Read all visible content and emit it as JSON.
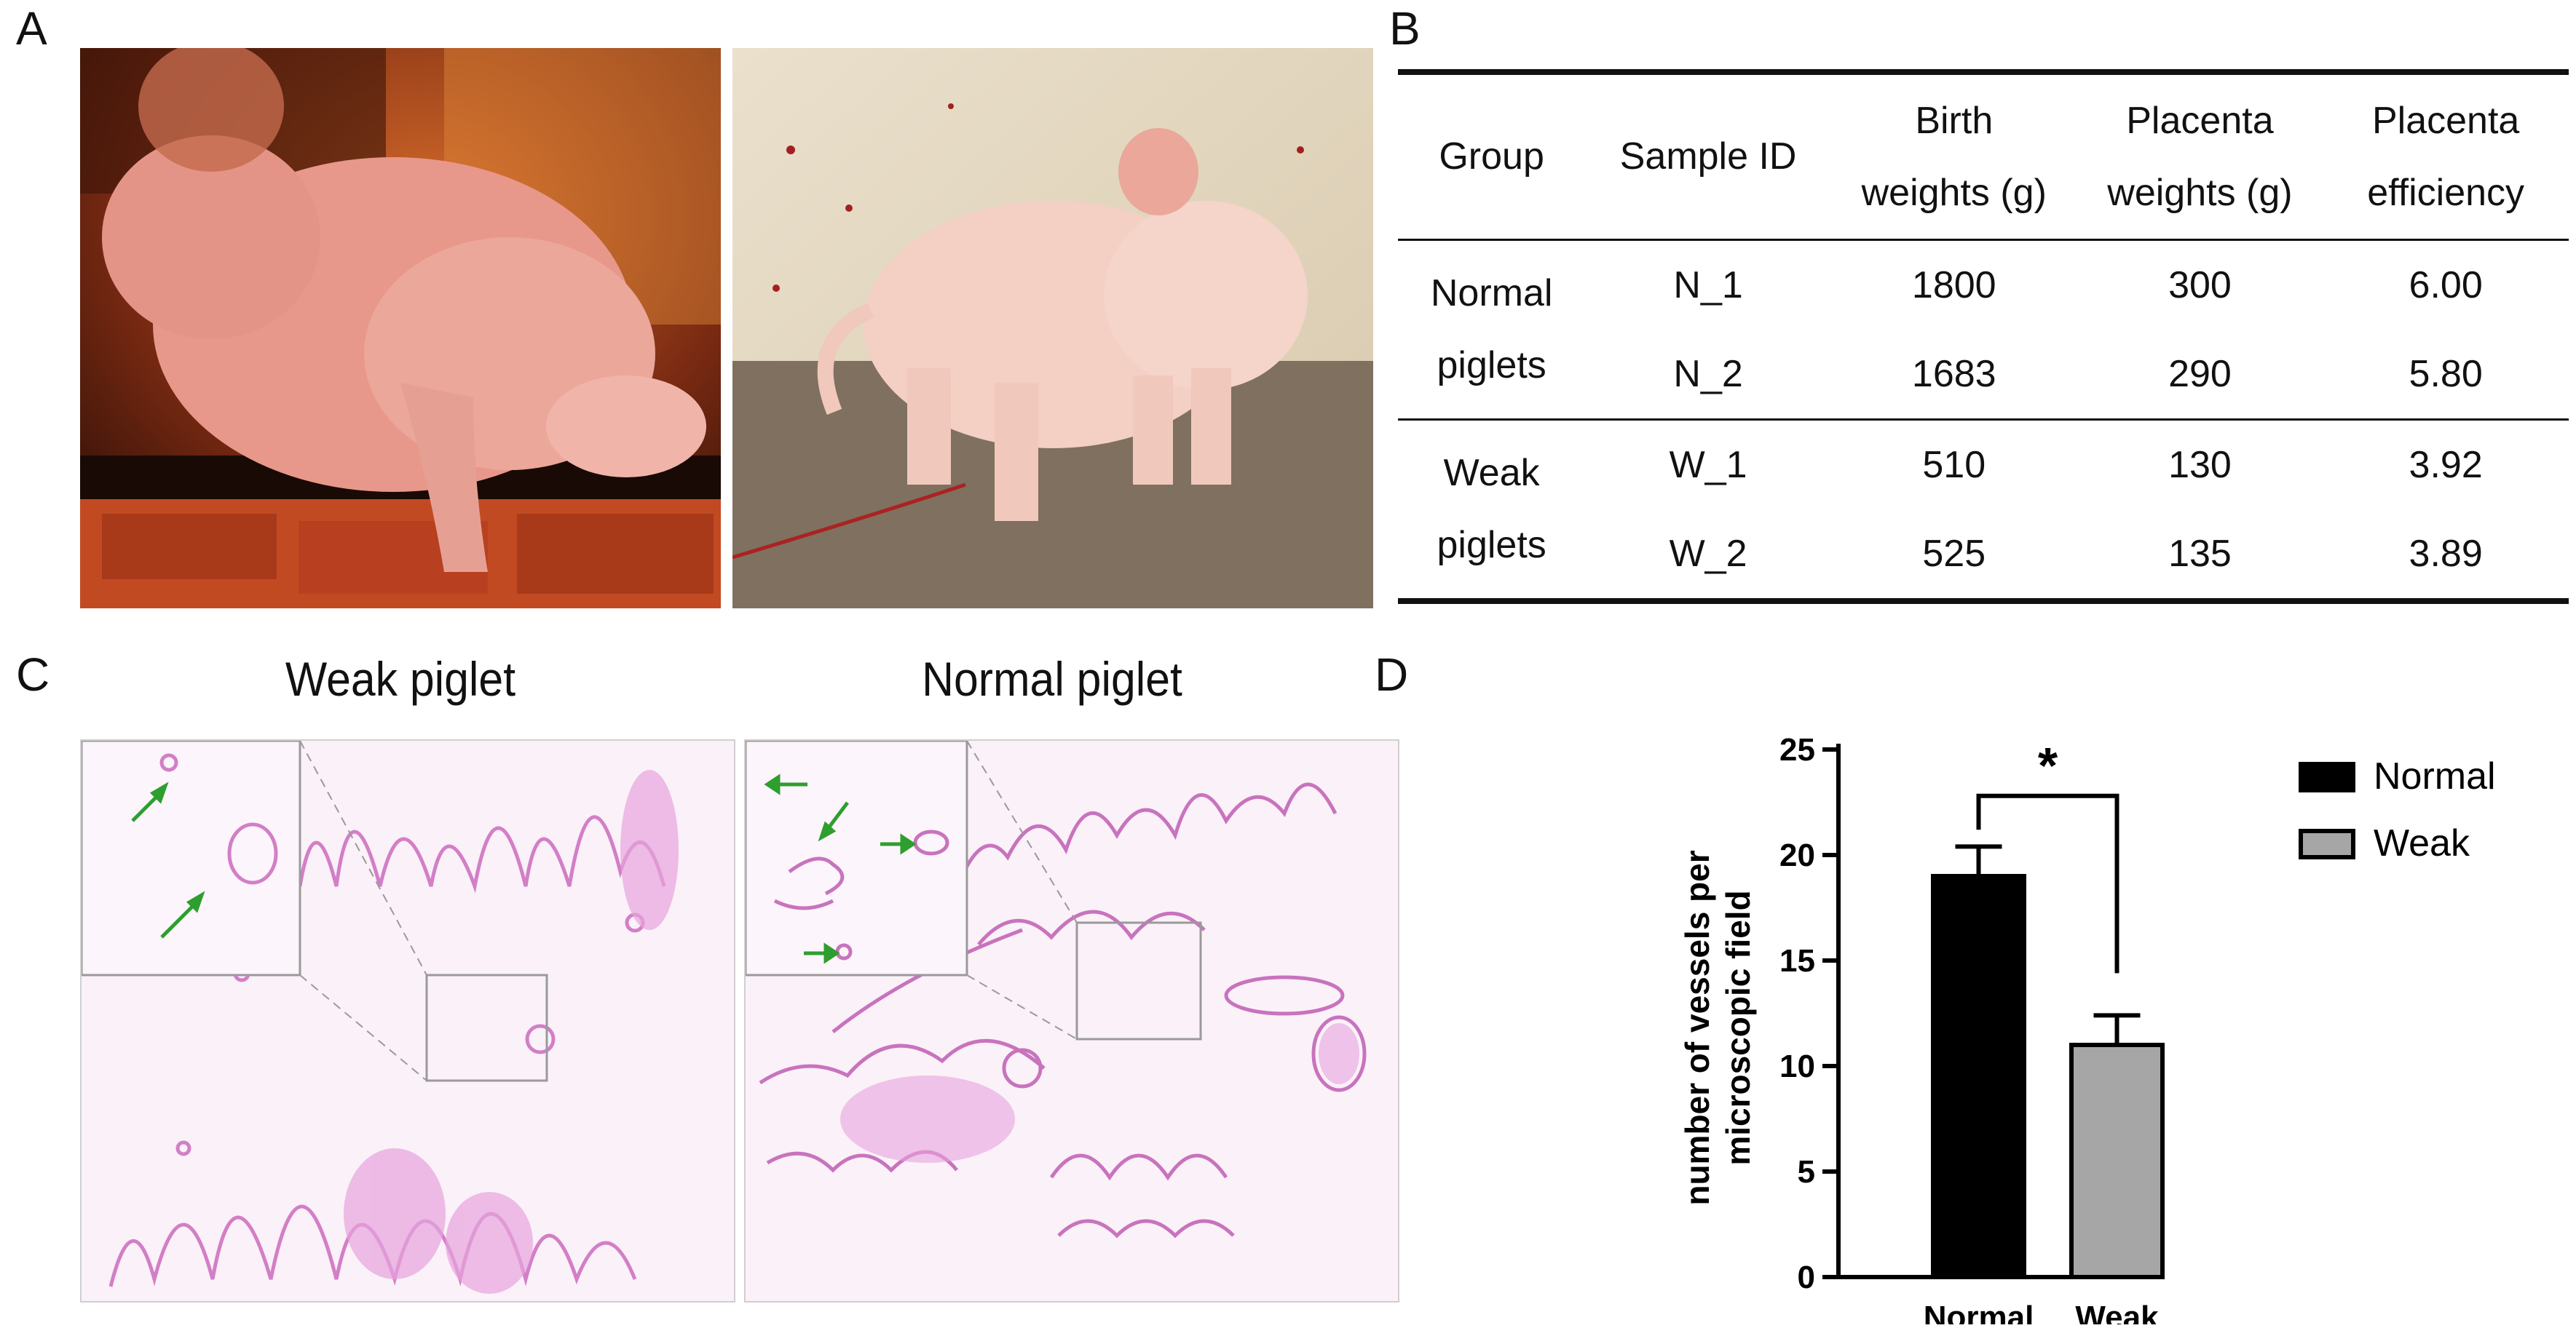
{
  "panels": {
    "a": "A",
    "b": "B",
    "c": "C",
    "d": "D"
  },
  "panel_c": {
    "left_title": "Weak piglet",
    "right_title": "Normal piglet"
  },
  "table": {
    "headers": [
      [
        "Group"
      ],
      [
        "Sample ID"
      ],
      [
        "Birth",
        "weights (g)"
      ],
      [
        "Placenta",
        "weights (g)"
      ],
      [
        "Placenta",
        "efficiency"
      ]
    ],
    "groups": [
      {
        "name": [
          "Normal",
          "piglets"
        ],
        "rows": [
          {
            "id": "N_1",
            "birth": "1800",
            "placenta": "300",
            "efficiency": "6.00"
          },
          {
            "id": "N_2",
            "birth": "1683",
            "placenta": "290",
            "efficiency": "5.80"
          }
        ]
      },
      {
        "name": [
          "Weak",
          "piglets"
        ],
        "rows": [
          {
            "id": "W_1",
            "birth": "510",
            "placenta": "130",
            "efficiency": "3.92"
          },
          {
            "id": "W_2",
            "birth": "525",
            "placenta": "135",
            "efficiency": "3.89"
          }
        ]
      }
    ]
  },
  "chart_data": {
    "type": "bar",
    "categories": [
      "Normal",
      "Weak"
    ],
    "values": [
      19,
      11
    ],
    "errors": [
      1.4,
      1.4
    ],
    "ylabel": "number of vessels per microscopic field",
    "ylim": [
      0,
      25
    ],
    "yticks": [
      "0",
      "5",
      "10",
      "15",
      "20",
      "25"
    ],
    "significance": "*",
    "legend": [
      {
        "name": "Normal",
        "color": "#000000"
      },
      {
        "name": "Weak",
        "color": "#a6a6a6"
      }
    ],
    "legend_position": "top-right",
    "grid": false
  }
}
